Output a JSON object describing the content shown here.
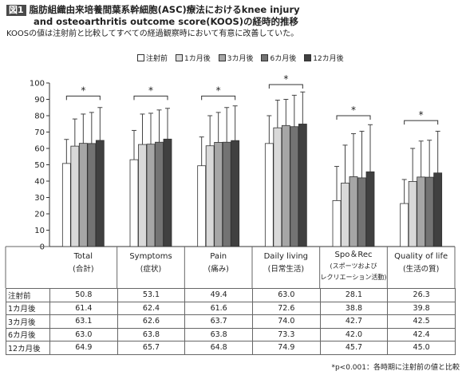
{
  "figure": {
    "badge": "図1",
    "title_line1": "脂肪組織由来培養間葉系幹細胞(ASC)療法におけるknee injury",
    "title_line2": "and osteoarthritis outcome score(KOOS)の経時的推移",
    "subtitle": "KOOSの値は注射前と比較してすべての経過観察時において有意に改善していた。",
    "footnote": "*p<0.001：各時期に注射前の値と比較"
  },
  "chart_data": {
    "type": "bar",
    "ylim": [
      0,
      100
    ],
    "yticks": [
      0,
      10,
      20,
      30,
      40,
      50,
      60,
      70,
      80,
      90,
      100
    ],
    "grid": false,
    "legend_position": "top-center",
    "categories": [
      {
        "name": "Total",
        "sub": "(合計)"
      },
      {
        "name": "Symptoms",
        "sub": "(症状)"
      },
      {
        "name": "Pain",
        "sub": "(痛み)"
      },
      {
        "name": "Daily living",
        "sub": "(日常生活)"
      },
      {
        "name": "Spo＆Rec",
        "sub": "(スポーツおよび",
        "sub2": "レクリエーション活動)"
      },
      {
        "name": "Quality of life",
        "sub": "(生活の質)"
      }
    ],
    "series": [
      {
        "name": "注射前",
        "color": "#ffffff",
        "values": [
          50.8,
          53.1,
          49.4,
          63.0,
          28.1,
          26.3
        ],
        "err_upper": [
          65.5,
          71.0,
          67.0,
          80.0,
          49.0,
          41.0
        ]
      },
      {
        "name": "1カ月後",
        "color": "#d9d9d9",
        "values": [
          61.4,
          62.4,
          61.6,
          72.6,
          38.8,
          39.8
        ],
        "err_upper": [
          78.0,
          81.0,
          80.0,
          89.5,
          62.0,
          60.0
        ]
      },
      {
        "name": "3カ月後",
        "color": "#a6a6a6",
        "values": [
          63.1,
          62.6,
          63.7,
          74.0,
          42.7,
          42.5
        ],
        "err_upper": [
          81.0,
          81.5,
          82.0,
          90.0,
          69.0,
          64.5
        ]
      },
      {
        "name": "6カ月後",
        "color": "#737373",
        "values": [
          63.0,
          63.8,
          63.8,
          73.3,
          42.0,
          42.4
        ],
        "err_upper": [
          82.0,
          83.5,
          85.0,
          92.5,
          70.5,
          65.0
        ]
      },
      {
        "name": "12カ月後",
        "color": "#404040",
        "values": [
          64.9,
          65.7,
          64.8,
          74.9,
          45.7,
          45.0
        ],
        "err_upper": [
          85.0,
          84.5,
          86.0,
          94.5,
          74.5,
          70.5
        ]
      }
    ],
    "significance": [
      {
        "marker": "*",
        "y": 92
      },
      {
        "marker": "*",
        "y": 92
      },
      {
        "marker": "*",
        "y": 92
      },
      {
        "marker": "*",
        "y": 99
      },
      {
        "marker": "*",
        "y": 80
      },
      {
        "marker": "*",
        "y": 77
      }
    ]
  }
}
